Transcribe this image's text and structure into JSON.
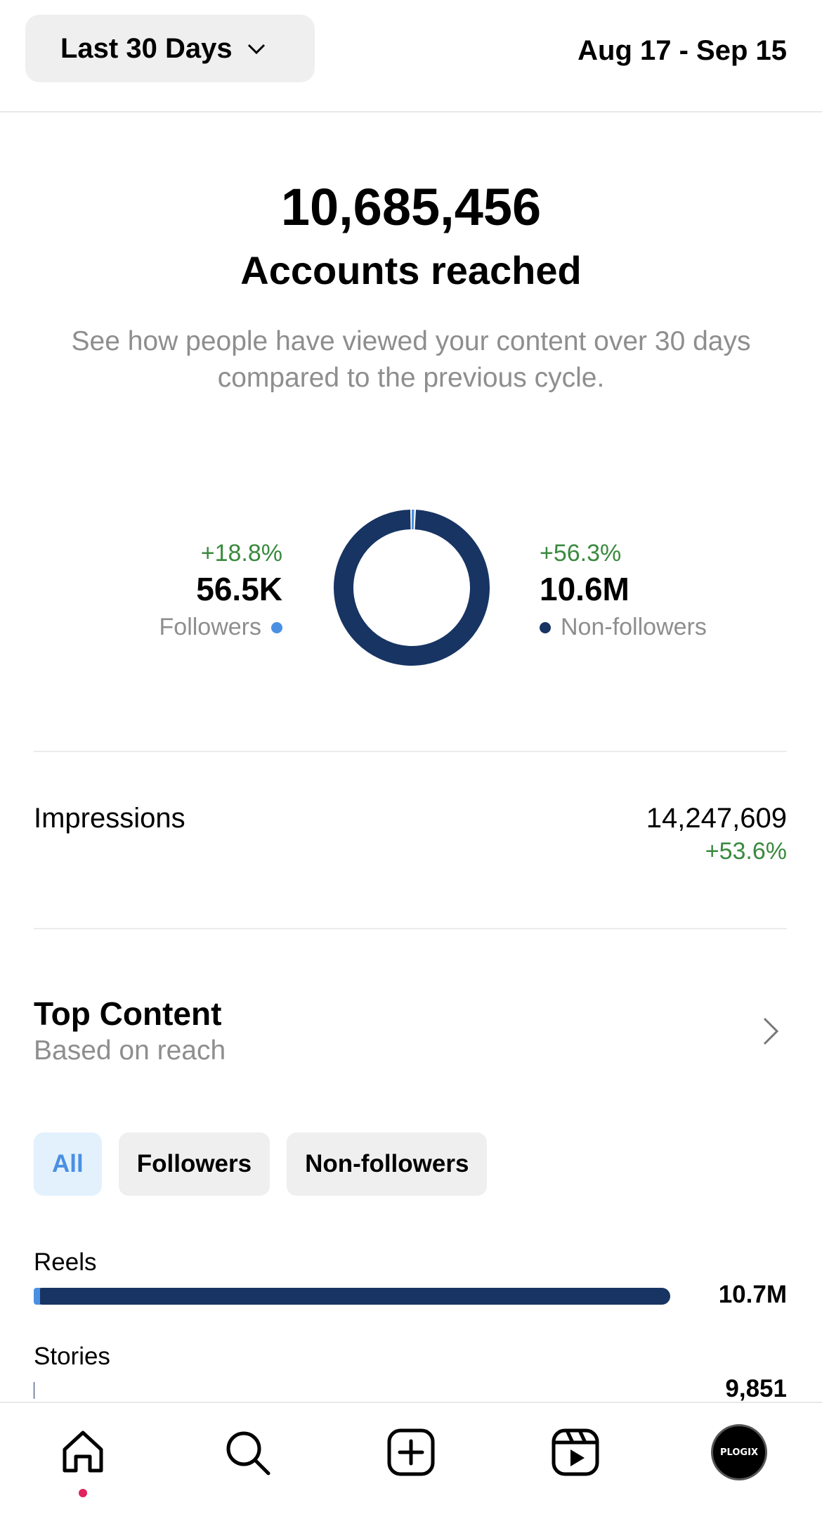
{
  "header": {
    "range_label": "Last 30 Days",
    "date_range": "Aug 17 - Sep 15"
  },
  "hero": {
    "number": "10,685,456",
    "label": "Accounts reached",
    "description": "See how people have viewed your content over 30 days compared to the previous cycle."
  },
  "audience": {
    "followers": {
      "change": "+18.8%",
      "value": "56.5K",
      "label": "Followers",
      "share": 0.0053,
      "color": "#4a90e2"
    },
    "non_followers": {
      "change": "+56.3%",
      "value": "10.6M",
      "label": "Non-followers",
      "share": 0.9947,
      "color": "#173463"
    }
  },
  "impressions": {
    "label": "Impressions",
    "value": "14,247,609",
    "change": "+53.6%"
  },
  "top_content": {
    "title": "Top Content",
    "subtitle": "Based on reach",
    "filters": [
      "All",
      "Followers",
      "Non-followers"
    ]
  },
  "content_types": [
    {
      "label": "Reels",
      "value": "10.7M",
      "fraction": 1.0
    },
    {
      "label": "Stories",
      "value": "9,851",
      "fraction": 0.001
    }
  ],
  "profile": {
    "avatar_text": "PLOGIX"
  }
}
